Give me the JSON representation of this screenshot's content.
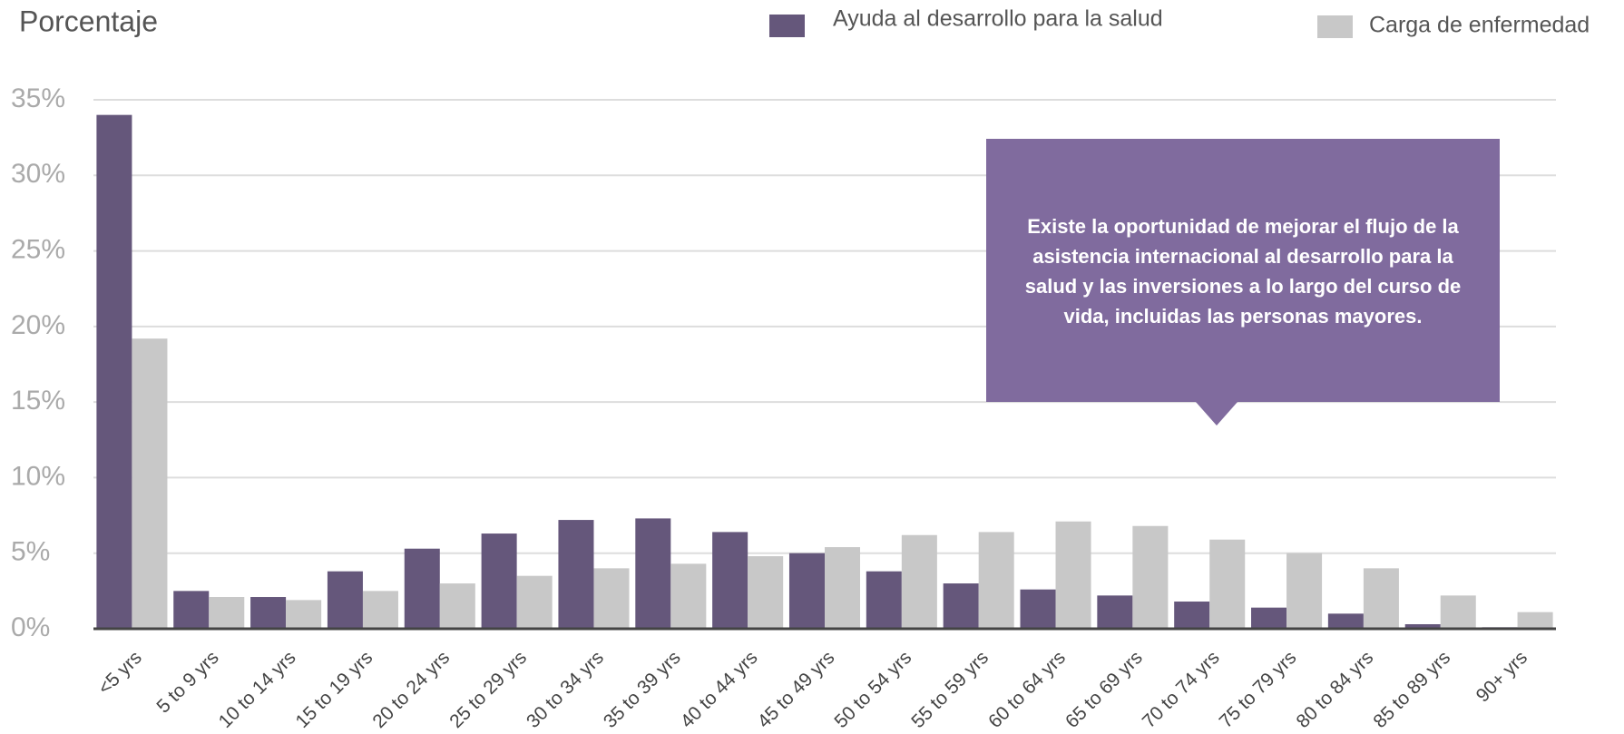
{
  "chart_data": {
    "type": "bar",
    "y_axis_label": "Porcentaje",
    "annotation": "Existe la oportunidad de mejorar el flujo de la asistencia internacional al desarrollo para la salud y las inversiones a lo largo del curso de vida, incluidas las personas mayores.",
    "categories": [
      "<5 yrs",
      "5 to 9 yrs",
      "10 to 14 yrs",
      "15 to 19 yrs",
      "20 to 24 yrs",
      "25 to 29 yrs",
      "30 to 34 yrs",
      "35 to 39 yrs",
      "40 to 44 yrs",
      "45 to 49 yrs",
      "50 to 54 yrs",
      "55 to 59 yrs",
      "60 to 64 yrs",
      "65 to 69 yrs",
      "70 to 74 yrs",
      "75 to 79 yrs",
      "80 to 84 yrs",
      "85 to 89 yrs",
      "90+ yrs"
    ],
    "series": [
      {
        "name": "Ayuda al desarrollo para la salud",
        "color": "#65577b",
        "values": [
          34,
          2.5,
          2.1,
          3.8,
          5.3,
          6.3,
          7.2,
          7.3,
          6.4,
          5.0,
          3.8,
          3.0,
          2.6,
          2.2,
          1.8,
          1.4,
          1.0,
          0.3,
          0.1
        ]
      },
      {
        "name": "Carga de enfermedad",
        "color": "#c8c8c8",
        "values": [
          19.2,
          2.1,
          1.9,
          2.5,
          3.0,
          3.5,
          4.0,
          4.3,
          4.8,
          5.4,
          6.2,
          6.4,
          7.1,
          6.8,
          5.9,
          5.0,
          4.0,
          2.2,
          1.1
        ]
      }
    ],
    "ylim": [
      0,
      35
    ],
    "yticks": [
      {
        "value": 0,
        "label": "0%"
      },
      {
        "value": 5,
        "label": "5%"
      },
      {
        "value": 10,
        "label": "10%"
      },
      {
        "value": 15,
        "label": "15%"
      },
      {
        "value": 20,
        "label": "20%"
      },
      {
        "value": 25,
        "label": "25%"
      },
      {
        "value": 30,
        "label": "30%"
      },
      {
        "value": 35,
        "label": "35%"
      }
    ],
    "grid": true
  }
}
